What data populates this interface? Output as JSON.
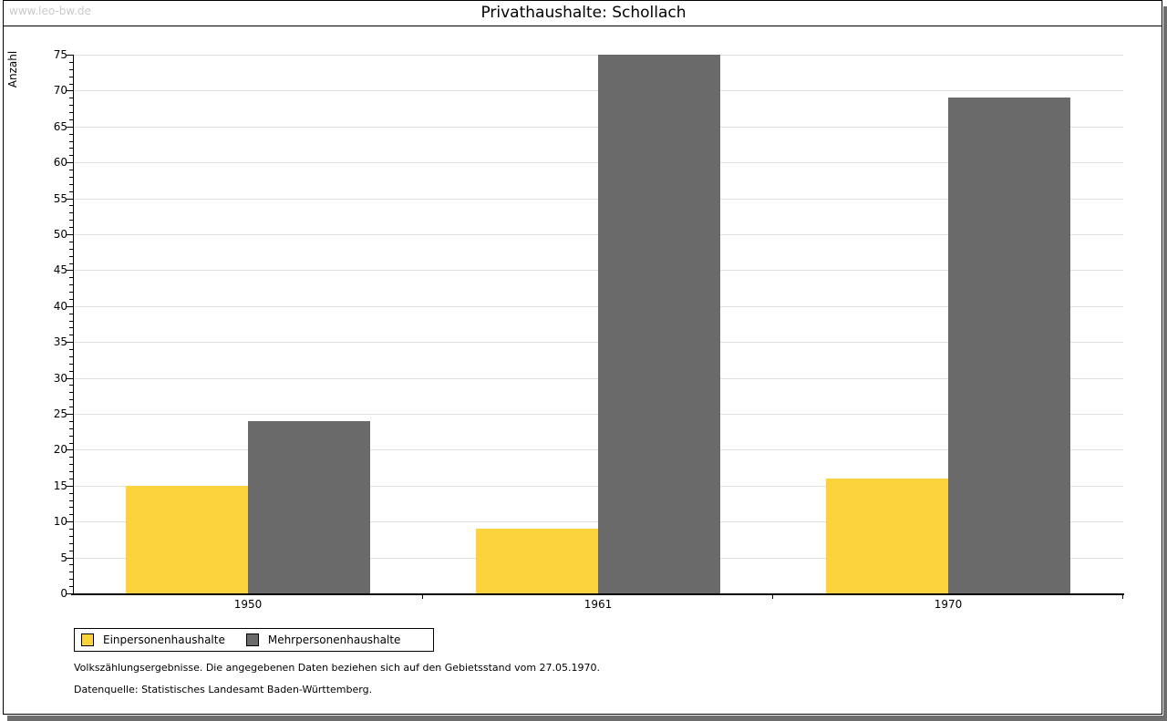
{
  "watermark": "www.leo-bw.de",
  "title": "Privathaushalte: Schollach",
  "chart_data": {
    "type": "bar",
    "title": "Privathaushalte: Schollach",
    "categories": [
      "1950",
      "1961",
      "1970"
    ],
    "series": [
      {
        "name": "Einpersonenhaushalte",
        "color": "#FCD33C",
        "values": [
          15,
          9,
          16
        ]
      },
      {
        "name": "Mehrpersonenhaushalte",
        "color": "#6A6A6A",
        "values": [
          24,
          75,
          69
        ]
      }
    ],
    "xlabel": "",
    "ylabel": "Anzahl",
    "ylim": [
      0,
      75
    ],
    "ytick_step": 5,
    "grid": "horizontal-major",
    "legend_position": "bottom-left"
  },
  "footnotes": [
    "Volkszählungsergebnisse. Die angegebenen Daten beziehen sich auf den Gebietsstand vom 27.05.1970.",
    "Datenquelle: Statistisches Landesamt Baden-Württemberg."
  ],
  "colors": {
    "grid": "#E0E0E0",
    "axis": "#000000",
    "shadow": "#6E6E6E",
    "watermark": "#C9C9C9",
    "page_bg": "#FFFFFF"
  }
}
